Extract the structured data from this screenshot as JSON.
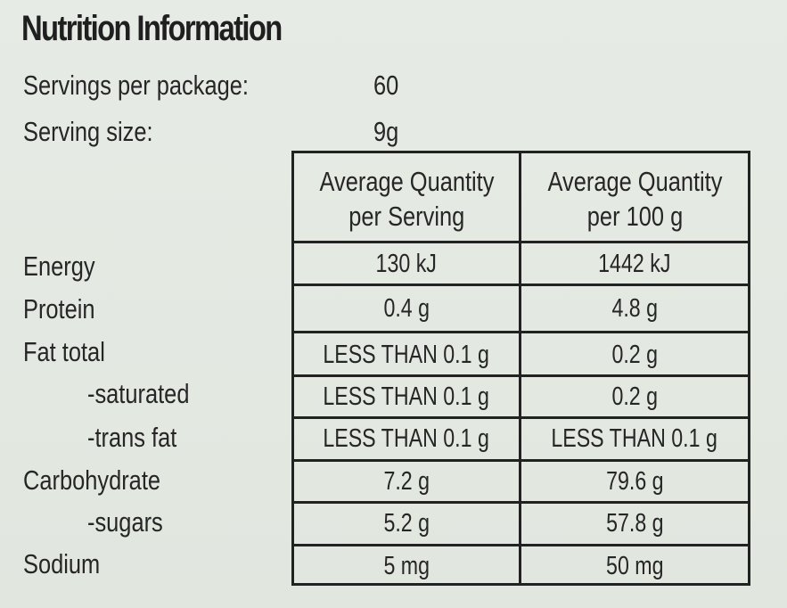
{
  "title": "Nutrition Information",
  "servings": {
    "per_package_label": "Servings per package:",
    "per_package_value": "60",
    "size_label": "Serving size:",
    "size_value": "9g"
  },
  "columns": {
    "per_serving_line1": "Average Quantity",
    "per_serving_line2": "per Serving",
    "per_100g_line1": "Average Quantity",
    "per_100g_line2": "per 100 g"
  },
  "rows": [
    {
      "label": "Energy",
      "per_serving": "130 kJ",
      "per_100g": "1442 kJ"
    },
    {
      "label": "Protein",
      "per_serving": "0.4 g",
      "per_100g": "4.8 g"
    },
    {
      "label": "Fat total",
      "per_serving": "LESS THAN 0.1 g",
      "per_100g": "0.2 g"
    },
    {
      "label": "-saturated",
      "per_serving": "LESS THAN 0.1 g",
      "per_100g": "0.2 g"
    },
    {
      "label": "-trans fat",
      "per_serving": "LESS THAN 0.1 g",
      "per_100g": "LESS THAN 0.1 g"
    },
    {
      "label": "Carbohydrate",
      "per_serving": "7.2 g",
      "per_100g": "79.6 g"
    },
    {
      "label": "-sugars",
      "per_serving": "5.2 g",
      "per_100g": "57.8 g"
    },
    {
      "label": "Sodium",
      "per_serving": "5 mg",
      "per_100g": "50 mg"
    }
  ]
}
